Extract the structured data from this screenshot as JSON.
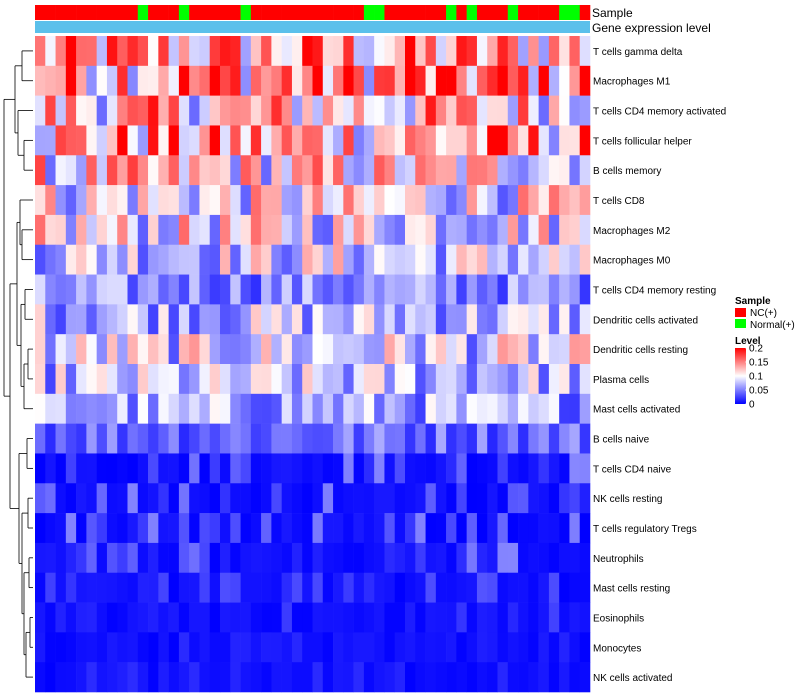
{
  "chart_data": {
    "type": "heatmap",
    "title": "",
    "annotation_tracks": [
      "Sample",
      "Gene expression level"
    ],
    "sample_groups": [
      "NC",
      "NC",
      "NC",
      "NC",
      "NC",
      "NC",
      "NC",
      "NC",
      "NC",
      "NC",
      "Normal",
      "NC",
      "NC",
      "NC",
      "Normal",
      "NC",
      "NC",
      "NC",
      "NC",
      "NC",
      "Normal",
      "NC",
      "NC",
      "NC",
      "NC",
      "NC",
      "NC",
      "NC",
      "NC",
      "NC",
      "NC",
      "NC",
      "Normal",
      "Normal",
      "NC",
      "NC",
      "NC",
      "NC",
      "NC",
      "NC",
      "Normal",
      "NC",
      "Normal",
      "NC",
      "NC",
      "NC",
      "Normal",
      "NC",
      "NC",
      "NC",
      "NC",
      "Normal",
      "Normal",
      "NC"
    ],
    "rows": [
      "T cells gamma delta",
      "Macrophages M1",
      "T cells CD4 memory activated",
      "T cells follicular helper",
      "B cells memory",
      "T cells CD8",
      "Macrophages M2",
      "Macrophages M0",
      "T cells CD4 memory resting",
      "Dendritic cells activated",
      "Dendritic cells resting",
      "Plasma cells",
      "Mast cells activated",
      "B cells naive",
      "T cells CD4 naive",
      "NK cells resting",
      "T cells regulatory  Tregs",
      "Neutrophils",
      "Mast cells resting",
      "Eosinophils",
      "Monocytes",
      "NK cells activated"
    ],
    "row_means": [
      0.12,
      0.14,
      0.11,
      0.12,
      0.1,
      0.09,
      0.09,
      0.08,
      0.05,
      0.07,
      0.08,
      0.07,
      0.06,
      0.04,
      0.03,
      0.03,
      0.03,
      0.03,
      0.02,
      0.015,
      0.01,
      0.01
    ],
    "value_range": [
      0,
      0.2
    ],
    "legend": {
      "sample_title": "Sample",
      "sample_entries": [
        {
          "label": "NC(+)",
          "color": "#ff0000"
        },
        {
          "label": "Normal(+)",
          "color": "#00ff00"
        }
      ],
      "level_title": "Level",
      "level_ticks": [
        "0.2",
        "0.15",
        "0.1",
        "0.05",
        "0"
      ],
      "level_tick_values": [
        0.2,
        0.15,
        0.1,
        0.05,
        0
      ]
    },
    "expression_track_color": "#5bc0eb"
  },
  "colors": {
    "low": "#0000ff",
    "mid": "#ffffff",
    "high": "#ff0000"
  }
}
